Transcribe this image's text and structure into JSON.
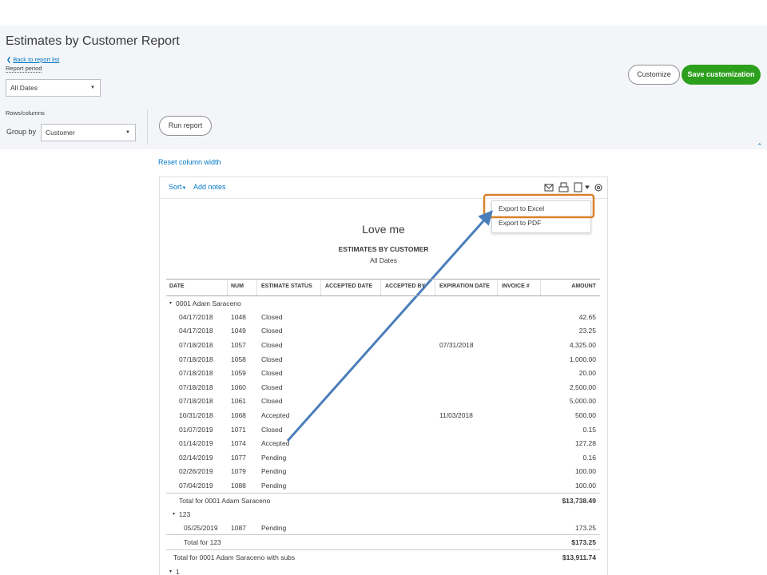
{
  "page": {
    "title": "Estimates by Customer Report",
    "back_link": "Back to report list",
    "report_period_label": "Report period",
    "report_period": "All Dates",
    "rows_columns_label": "Rows/columns",
    "group_by_label": "Group by",
    "group_by": "Customer",
    "run_report": "Run report",
    "customize": "Customize",
    "save_customization": "Save customization",
    "reset_column_width": "Reset column width"
  },
  "toolbar": {
    "sort": "Sort",
    "add_notes": "Add notes",
    "menu": [
      "Export to Excel",
      "Export to PDF"
    ]
  },
  "report": {
    "company": "Love me",
    "title": "ESTIMATES BY CUSTOMER",
    "period": "All Dates",
    "columns": [
      "DATE",
      "NUM",
      "ESTIMATE STATUS",
      "ACCEPTED DATE",
      "ACCEPTED BY",
      "EXPIRATION DATE",
      "INVOICE #",
      "AMOUNT"
    ],
    "lines": [
      {
        "kind": "group",
        "label": "0001 Adam Saraceno"
      },
      {
        "kind": "row",
        "date": "04/17/2018",
        "num": "1048",
        "status": "Closed",
        "amount": "42.65"
      },
      {
        "kind": "row",
        "date": "04/17/2018",
        "num": "1049",
        "status": "Closed",
        "amount": "23.25"
      },
      {
        "kind": "row",
        "date": "07/18/2018",
        "num": "1057",
        "status": "Closed",
        "expiration": "07/31/2018",
        "amount": "4,325.00"
      },
      {
        "kind": "row",
        "date": "07/18/2018",
        "num": "1058",
        "status": "Closed",
        "amount": "1,000.00"
      },
      {
        "kind": "row",
        "date": "07/18/2018",
        "num": "1059",
        "status": "Closed",
        "amount": "20.00"
      },
      {
        "kind": "row",
        "date": "07/18/2018",
        "num": "1060",
        "status": "Closed",
        "amount": "2,500.00"
      },
      {
        "kind": "row",
        "date": "07/18/2018",
        "num": "1061",
        "status": "Closed",
        "amount": "5,000.00"
      },
      {
        "kind": "row",
        "date": "10/31/2018",
        "num": "1068",
        "status": "Accepted",
        "expiration": "11/03/2018",
        "amount": "500.00"
      },
      {
        "kind": "row",
        "date": "01/07/2019",
        "num": "1071",
        "status": "Closed",
        "amount": "0.15"
      },
      {
        "kind": "row",
        "date": "01/14/2019",
        "num": "1074",
        "status": "Accepted",
        "amount": "127.28"
      },
      {
        "kind": "row",
        "date": "02/14/2019",
        "num": "1077",
        "status": "Pending",
        "amount": "0.16"
      },
      {
        "kind": "row",
        "date": "02/26/2019",
        "num": "1079",
        "status": "Pending",
        "amount": "100.00"
      },
      {
        "kind": "row",
        "date": "07/04/2019",
        "num": "1088",
        "status": "Pending",
        "amount": "100.00"
      },
      {
        "kind": "total",
        "label": "Total for 0001 Adam Saraceno",
        "amount": "$13,738.49"
      },
      {
        "kind": "subgroup",
        "label": "123"
      },
      {
        "kind": "subrow",
        "date": "05/25/2019",
        "num": "1087",
        "status": "Pending",
        "amount": "173.25"
      },
      {
        "kind": "subtotal",
        "label": "Total for 123",
        "amount": "$173.25"
      },
      {
        "kind": "grandtotal",
        "label": "Total for 0001 Adam Saraceno with subs",
        "amount": "$13,911.74"
      },
      {
        "kind": "group",
        "label": "1"
      }
    ]
  }
}
